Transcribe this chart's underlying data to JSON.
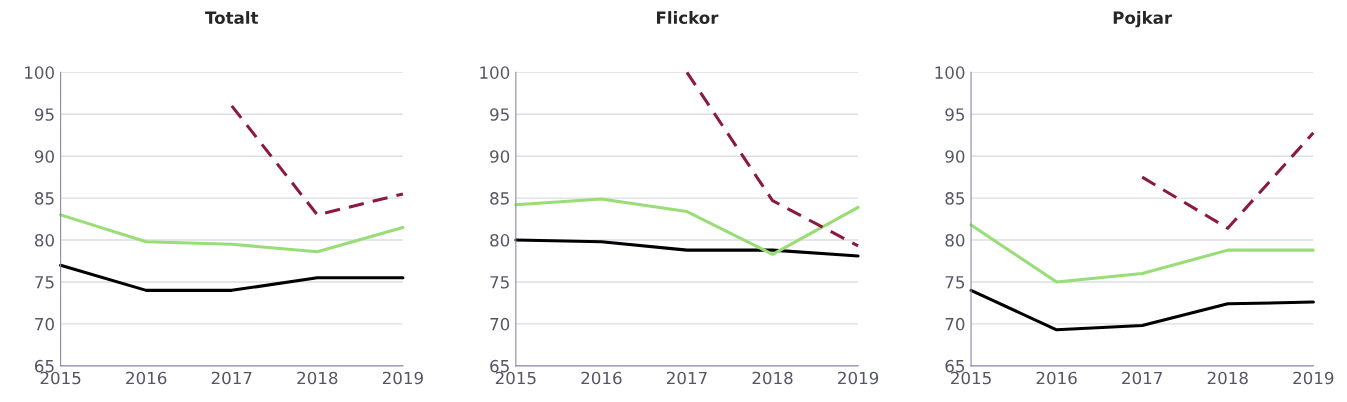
{
  "chart_data": [
    {
      "type": "line",
      "title": "Totalt",
      "x": [
        2015,
        2016,
        2017,
        2018,
        2019
      ],
      "xlim": [
        2015,
        2019
      ],
      "xticks": [
        2015,
        2016,
        2017,
        2018,
        2019
      ],
      "ylim": [
        65,
        100
      ],
      "yticks": [
        65,
        70,
        75,
        80,
        85,
        90,
        95,
        100
      ],
      "grid": "y",
      "legend": false,
      "series": [
        {
          "color": "#000000",
          "values": [
            77,
            74,
            74,
            75.5,
            75.5
          ],
          "line_style": "solid"
        },
        {
          "color": "#99dd77",
          "values": [
            83,
            79.8,
            79.5,
            78.6,
            81.5
          ],
          "line_style": "solid"
        },
        {
          "color": "#8b1a42",
          "values": [
            null,
            null,
            96,
            83,
            85.5
          ],
          "line_style": "dashed"
        }
      ]
    },
    {
      "type": "line",
      "title": "Flickor",
      "x": [
        2015,
        2016,
        2017,
        2018,
        2019
      ],
      "xlim": [
        2015,
        2019
      ],
      "xticks": [
        2015,
        2016,
        2017,
        2018,
        2019
      ],
      "ylim": [
        65,
        100
      ],
      "yticks": [
        65,
        70,
        75,
        80,
        85,
        90,
        95,
        100
      ],
      "grid": "y",
      "legend": false,
      "series": [
        {
          "color": "#000000",
          "values": [
            80,
            79.8,
            78.8,
            78.8,
            78.1
          ],
          "line_style": "solid"
        },
        {
          "color": "#99dd77",
          "values": [
            84.2,
            84.9,
            83.4,
            78.3,
            83.9
          ],
          "line_style": "solid"
        },
        {
          "color": "#8b1a42",
          "values": [
            null,
            null,
            100,
            84.7,
            79.3
          ],
          "line_style": "dashed"
        }
      ]
    },
    {
      "type": "line",
      "title": "Pojkar",
      "x": [
        2015,
        2016,
        2017,
        2018,
        2019
      ],
      "xlim": [
        2015,
        2019
      ],
      "xticks": [
        2015,
        2016,
        2017,
        2018,
        2019
      ],
      "ylim": [
        65,
        100
      ],
      "yticks": [
        65,
        70,
        75,
        80,
        85,
        90,
        95,
        100
      ],
      "grid": "y",
      "legend": false,
      "series": [
        {
          "color": "#000000",
          "values": [
            74,
            69.3,
            69.8,
            72.4,
            72.6
          ],
          "line_style": "solid"
        },
        {
          "color": "#99dd77",
          "values": [
            81.8,
            75,
            76,
            78.8,
            78.8
          ],
          "line_style": "solid"
        },
        {
          "color": "#8b1a42",
          "values": [
            null,
            null,
            87.5,
            81.4,
            92.8
          ],
          "line_style": "dashed"
        }
      ]
    }
  ]
}
